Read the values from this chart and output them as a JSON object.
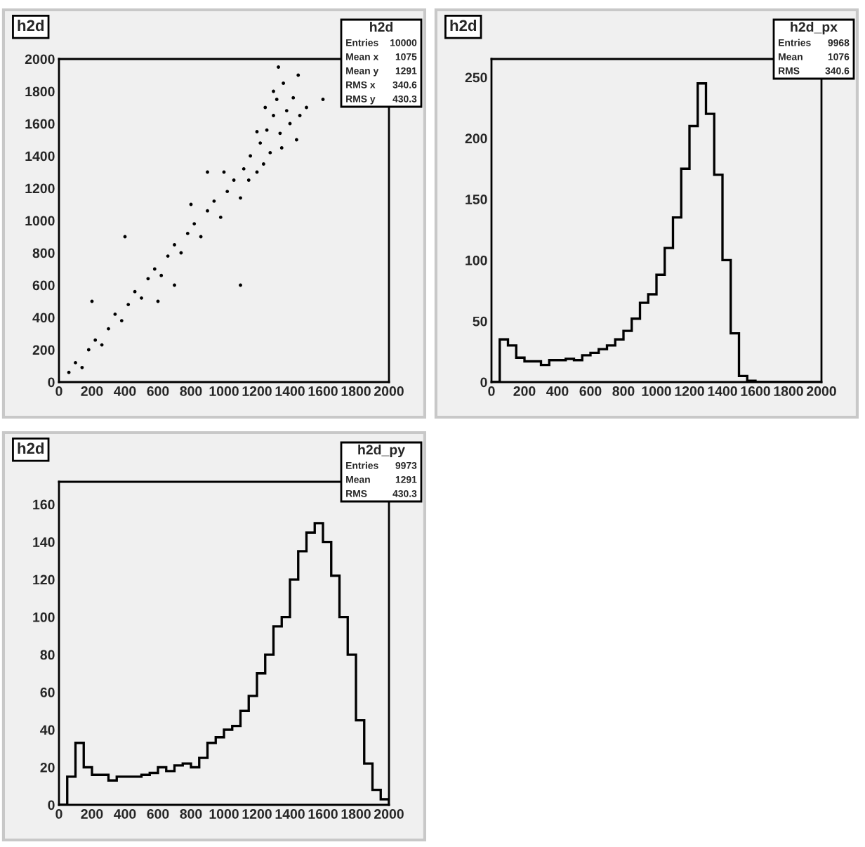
{
  "chart_data": [
    {
      "type": "scatter",
      "title": "h2d",
      "color": "#000000",
      "x": [
        60,
        100,
        140,
        180,
        220,
        260,
        300,
        340,
        380,
        420,
        460,
        500,
        540,
        580,
        620,
        660,
        700,
        740,
        780,
        820,
        860,
        900,
        940,
        980,
        1020,
        1060,
        1100,
        1120,
        1160,
        1200,
        1220,
        1260,
        1280,
        1300,
        1320,
        1340,
        1360,
        1380,
        1400,
        1420,
        1440,
        1460,
        1300,
        1250,
        1350,
        1200,
        1150,
        1000,
        800,
        600,
        1500,
        400,
        1100,
        200,
        1600,
        700,
        900,
        1450,
        1330,
        1240
      ],
      "values": [
        60,
        120,
        90,
        200,
        260,
        230,
        330,
        420,
        380,
        480,
        560,
        520,
        640,
        700,
        660,
        780,
        850,
        800,
        920,
        980,
        900,
        1060,
        1120,
        1020,
        1180,
        1250,
        1140,
        1320,
        1400,
        1300,
        1480,
        1560,
        1420,
        1650,
        1750,
        1540,
        1850,
        1680,
        1600,
        1760,
        1500,
        1650,
        1800,
        1700,
        1450,
        1550,
        1250,
        1300,
        1100,
        500,
        1700,
        900,
        600,
        500,
        1750,
        600,
        1300,
        1900,
        1950,
        1350
      ],
      "xlim": [
        0,
        2000
      ],
      "ylim": [
        0,
        2000
      ],
      "xticks": [
        0,
        200,
        400,
        600,
        800,
        1000,
        1200,
        1400,
        1600,
        1800,
        2000
      ],
      "yticks": [
        0,
        200,
        400,
        600,
        800,
        1000,
        1200,
        1400,
        1600,
        1800,
        2000
      ],
      "annotations": [
        "h2d",
        "Entries",
        "10000",
        "Mean x",
        "1075",
        "Mean y",
        "1291",
        "RMS x",
        "340.6",
        "RMS y",
        "430.3"
      ]
    },
    {
      "type": "histogram",
      "title": "h2d",
      "color": "#000000",
      "bins": [
        0,
        50,
        100,
        150,
        200,
        250,
        300,
        350,
        400,
        450,
        500,
        550,
        600,
        650,
        700,
        750,
        800,
        850,
        900,
        950,
        1000,
        1050,
        1100,
        1150,
        1200,
        1250,
        1300,
        1350,
        1400,
        1450,
        1500,
        1550,
        1600,
        1650,
        1700,
        1750,
        1800,
        1850,
        1900,
        1950,
        2000
      ],
      "values": [
        0,
        35,
        30,
        20,
        17,
        17,
        14,
        18,
        18,
        19,
        18,
        22,
        24,
        27,
        30,
        35,
        42,
        52,
        65,
        72,
        88,
        110,
        135,
        175,
        210,
        245,
        220,
        170,
        100,
        40,
        5,
        1,
        0,
        0,
        0,
        0,
        0,
        0,
        0,
        0
      ],
      "xlim": [
        0,
        2000
      ],
      "ylim": [
        0,
        265
      ],
      "xticks": [
        0,
        200,
        400,
        600,
        800,
        1000,
        1200,
        1400,
        1600,
        1800,
        2000
      ],
      "yticks": [
        0,
        50,
        100,
        150,
        200,
        250
      ],
      "annotations": [
        "h2d_px",
        "Entries",
        "9968",
        "Mean",
        "1076",
        "RMS",
        "340.6"
      ]
    },
    {
      "type": "histogram",
      "title": "h2d",
      "color": "#000000",
      "bins": [
        0,
        50,
        100,
        150,
        200,
        250,
        300,
        350,
        400,
        450,
        500,
        550,
        600,
        650,
        700,
        750,
        800,
        850,
        900,
        950,
        1000,
        1050,
        1100,
        1150,
        1200,
        1250,
        1300,
        1350,
        1400,
        1450,
        1500,
        1550,
        1600,
        1650,
        1700,
        1750,
        1800,
        1850,
        1900,
        1950,
        2000
      ],
      "values": [
        0,
        15,
        33,
        20,
        16,
        16,
        13,
        15,
        15,
        15,
        16,
        17,
        20,
        18,
        21,
        22,
        20,
        25,
        33,
        36,
        40,
        42,
        50,
        58,
        70,
        80,
        95,
        100,
        120,
        135,
        145,
        150,
        140,
        122,
        100,
        80,
        45,
        22,
        8,
        3
      ],
      "xlim": [
        0,
        2000
      ],
      "ylim": [
        0,
        172
      ],
      "xticks": [
        0,
        200,
        400,
        600,
        800,
        1000,
        1200,
        1400,
        1600,
        1800,
        2000
      ],
      "yticks": [
        0,
        20,
        40,
        60,
        80,
        100,
        120,
        140,
        160
      ],
      "annotations": [
        "h2d_py",
        "Entries",
        "9973",
        "Mean",
        "1291",
        "RMS",
        "430.3"
      ]
    }
  ]
}
